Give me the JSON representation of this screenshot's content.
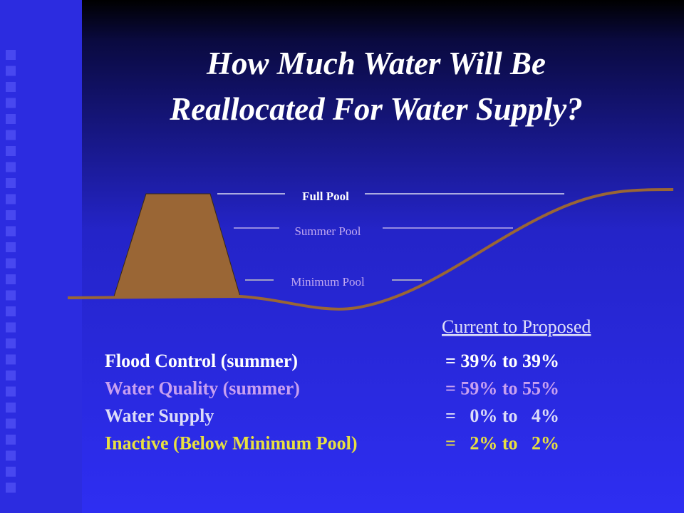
{
  "header": {
    "title_lines": [
      "How Much Water Will Be",
      "Reallocated For Water Supply?"
    ]
  },
  "diagram": {
    "labels": [
      "Full Pool",
      "Summer Pool",
      "Minimum Pool"
    ]
  },
  "table": {
    "header": "Current to Proposed",
    "rows": [
      {
        "label": "Flood Control (summer)",
        "value": "= 39% to 39%"
      },
      {
        "label": "Water Quality (summer)",
        "value": "= 59% to 55%"
      },
      {
        "label": "Water Supply",
        "value": "=   0% to   4%"
      },
      {
        "label": "Inactive (Below Minimum Pool)",
        "value": "=   2% to   2%"
      }
    ]
  }
}
